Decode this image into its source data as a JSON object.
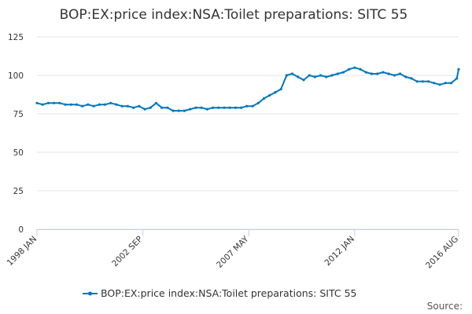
{
  "chart_data": {
    "type": "line",
    "title": "BOP:EX:price index:NSA:Toilet preparations: SITC 55",
    "xlabel": "",
    "ylabel": "",
    "ylim": [
      0,
      125
    ],
    "y_ticks": [
      0,
      25,
      50,
      75,
      100,
      125
    ],
    "x_ticks": [
      "1998 JAN",
      "2002 SEP",
      "2007 MAY",
      "2012 JAN",
      "2016 AUG"
    ],
    "grid": "horizontal",
    "legend_position": "bottom",
    "source_label": "Source:",
    "color": "#0077be",
    "series": [
      {
        "name": "BOP:EX:price index:NSA:Toilet preparations: SITC 55",
        "x": [
          1998.0,
          1998.25,
          1998.5,
          1998.75,
          1999.0,
          1999.25,
          1999.5,
          1999.75,
          2000.0,
          2000.25,
          2000.5,
          2000.75,
          2001.0,
          2001.25,
          2001.5,
          2001.75,
          2002.0,
          2002.25,
          2002.5,
          2002.75,
          2003.0,
          2003.25,
          2003.5,
          2003.75,
          2004.0,
          2004.25,
          2004.5,
          2004.75,
          2005.0,
          2005.25,
          2005.5,
          2005.75,
          2006.0,
          2006.25,
          2006.5,
          2006.75,
          2007.0,
          2007.25,
          2007.5,
          2007.75,
          2008.0,
          2008.25,
          2008.5,
          2008.75,
          2009.0,
          2009.25,
          2009.5,
          2009.75,
          2010.0,
          2010.25,
          2010.5,
          2010.75,
          2011.0,
          2011.25,
          2011.5,
          2011.75,
          2012.0,
          2012.25,
          2012.5,
          2012.75,
          2013.0,
          2013.25,
          2013.5,
          2013.75,
          2014.0,
          2014.25,
          2014.5,
          2014.75,
          2015.0,
          2015.25,
          2015.5,
          2015.75,
          2016.0,
          2016.25,
          2016.5,
          2016.58
        ],
        "values": [
          82,
          81,
          82,
          82,
          82,
          81,
          81,
          81,
          80,
          81,
          80,
          81,
          81,
          82,
          81,
          80,
          80,
          79,
          80,
          78,
          79,
          82,
          79,
          79,
          77,
          77,
          77,
          78,
          79,
          79,
          78,
          79,
          79,
          79,
          79,
          79,
          79,
          80,
          80,
          82,
          85,
          87,
          89,
          91,
          100,
          101,
          99,
          97,
          100,
          99,
          100,
          99,
          100,
          101,
          102,
          104,
          105,
          104,
          102,
          101,
          101,
          102,
          101,
          100,
          101,
          99,
          98,
          96,
          96,
          96,
          95,
          94,
          95,
          95,
          98,
          104
        ]
      }
    ]
  }
}
